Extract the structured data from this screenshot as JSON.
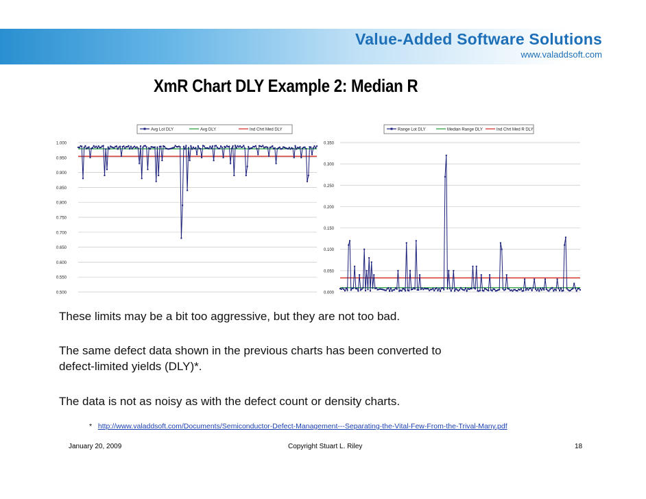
{
  "brand": {
    "name": "Value-Added Software Solutions",
    "url": "www.valaddsoft.com",
    "colors": {
      "banner_start": "#2a8fd0",
      "text": "#1d6fb8"
    }
  },
  "slide_title": "XmR Chart DLY Example 2:  Median R",
  "chart_data": [
    {
      "type": "line",
      "legend": [
        "Avg Lot DLY",
        "Avg DLY",
        "Ind Chrt Med DLY"
      ],
      "series_colors": [
        "#1a1f7a",
        "#1c9a36",
        "#d0231c"
      ],
      "ylim": [
        0.5,
        1.0
      ],
      "ytick_labels": [
        "1.000",
        "0.950",
        "0.900",
        "0.850",
        "0.800",
        "0.750",
        "0.700",
        "0.650",
        "0.600",
        "0.550",
        "0.500"
      ],
      "n_points": 200,
      "baseline": 0.99,
      "mean_line": 0.979,
      "limit_line": 0.954,
      "dips": [
        [
          4,
          0.88
        ],
        [
          10,
          0.95
        ],
        [
          22,
          0.89
        ],
        [
          24,
          0.91
        ],
        [
          36,
          0.955
        ],
        [
          51,
          0.93
        ],
        [
          53,
          0.88
        ],
        [
          58,
          0.91
        ],
        [
          65,
          0.87
        ],
        [
          67,
          0.89
        ],
        [
          70,
          0.94
        ],
        [
          86,
          0.68
        ],
        [
          87,
          0.79
        ],
        [
          91,
          0.84
        ],
        [
          93,
          0.94
        ],
        [
          99,
          0.96
        ],
        [
          103,
          0.95
        ],
        [
          113,
          0.94
        ],
        [
          121,
          0.95
        ],
        [
          127,
          0.93
        ],
        [
          130,
          0.89
        ],
        [
          140,
          0.89
        ],
        [
          141,
          0.92
        ],
        [
          150,
          0.96
        ],
        [
          159,
          0.955
        ],
        [
          165,
          0.93
        ],
        [
          180,
          0.95
        ],
        [
          186,
          0.95
        ],
        [
          191,
          0.87
        ],
        [
          192,
          0.89
        ],
        [
          195,
          0.96
        ]
      ]
    },
    {
      "type": "line",
      "legend": [
        "Range Lot DLY",
        "Median Range DLY",
        "Ind Chrt Med R DLY"
      ],
      "series_colors": [
        "#1a1f7a",
        "#1c9a36",
        "#d0231c"
      ],
      "ylim": [
        0.0,
        0.35
      ],
      "ytick_labels": [
        "0.350",
        "0.300",
        "0.250",
        "0.200",
        "0.150",
        "0.100",
        "0.050",
        "0.000"
      ],
      "n_points": 200,
      "baseline": 0.006,
      "mean_line": 0.01,
      "limit_line": 0.033,
      "spikes": [
        [
          7,
          0.11
        ],
        [
          8,
          0.12
        ],
        [
          12,
          0.06
        ],
        [
          16,
          0.04
        ],
        [
          20,
          0.1
        ],
        [
          22,
          0.05
        ],
        [
          24,
          0.08
        ],
        [
          26,
          0.07
        ],
        [
          28,
          0.04
        ],
        [
          48,
          0.05
        ],
        [
          55,
          0.115
        ],
        [
          58,
          0.05
        ],
        [
          63,
          0.12
        ],
        [
          66,
          0.04
        ],
        [
          87,
          0.27
        ],
        [
          88,
          0.32
        ],
        [
          90,
          0.05
        ],
        [
          94,
          0.05
        ],
        [
          110,
          0.06
        ],
        [
          113,
          0.06
        ],
        [
          117,
          0.04
        ],
        [
          124,
          0.04
        ],
        [
          133,
          0.115
        ],
        [
          134,
          0.1
        ],
        [
          138,
          0.04
        ],
        [
          153,
          0.03
        ],
        [
          161,
          0.03
        ],
        [
          170,
          0.03
        ],
        [
          180,
          0.03
        ],
        [
          186,
          0.11
        ],
        [
          187,
          0.128
        ],
        [
          194,
          0.02
        ]
      ]
    }
  ],
  "paragraphs": [
    "These limits may be a bit too aggressive, but they are not too bad.",
    "The same defect data shown in the previous charts has been converted to",
    "defect-limited yields (DLY)*.",
    "The data is not as noisy as with the defect count or density charts."
  ],
  "footnote": {
    "marker": "*",
    "link": "http://www.valaddsoft.com/Documents/Semiconductor-Defect-Management---Separating-the-Vital-Few-From-the-Trival-Many.pdf"
  },
  "footer": {
    "date": "January 20, 2009",
    "copyright": "Copyright    Stuart L. Riley",
    "page": "18"
  }
}
